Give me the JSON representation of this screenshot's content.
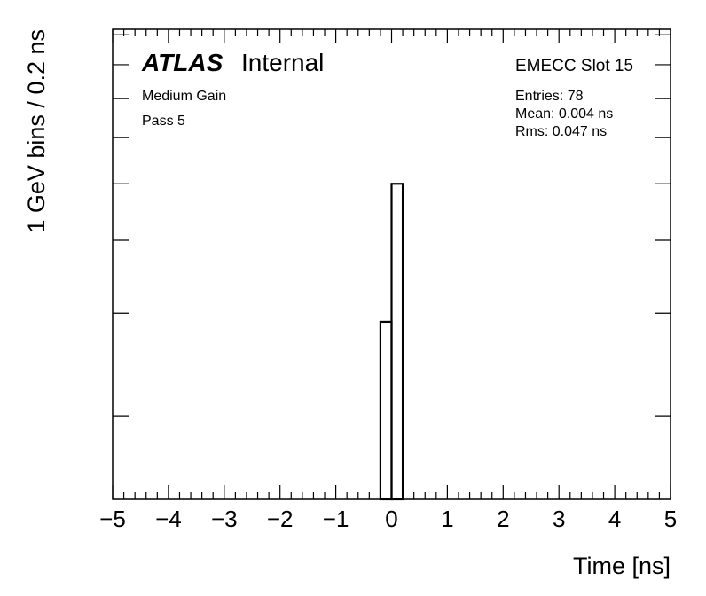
{
  "chart_data": {
    "type": "histogram",
    "xlabel": "Time [ns]",
    "ylabel": "1 GeV bins / 0.2 ns",
    "xlim": [
      -5,
      5
    ],
    "x_ticks": [
      "−5",
      "−4",
      "−3",
      "−2",
      "−1",
      "0",
      "1",
      "2",
      "3",
      "4",
      "5"
    ],
    "y_scale": "log",
    "ylim": [
      1.44,
      9.2
    ],
    "y_tick_labels_shown": false,
    "bin_width": 0.2,
    "bins": [
      {
        "low": -0.2,
        "high": 0.0,
        "value": 2.9
      },
      {
        "low": 0.0,
        "high": 0.2,
        "value": 5.0
      }
    ],
    "grid": false
  },
  "annotations": {
    "atlas": "ATLAS",
    "atlas_suffix": "Internal",
    "gain": "Medium Gain",
    "pass": "Pass 5",
    "slot": "EMECC Slot 15",
    "entries": "Entries: 78",
    "mean": "Mean: 0.004 ns",
    "rms": "Rms: 0.047 ns"
  }
}
